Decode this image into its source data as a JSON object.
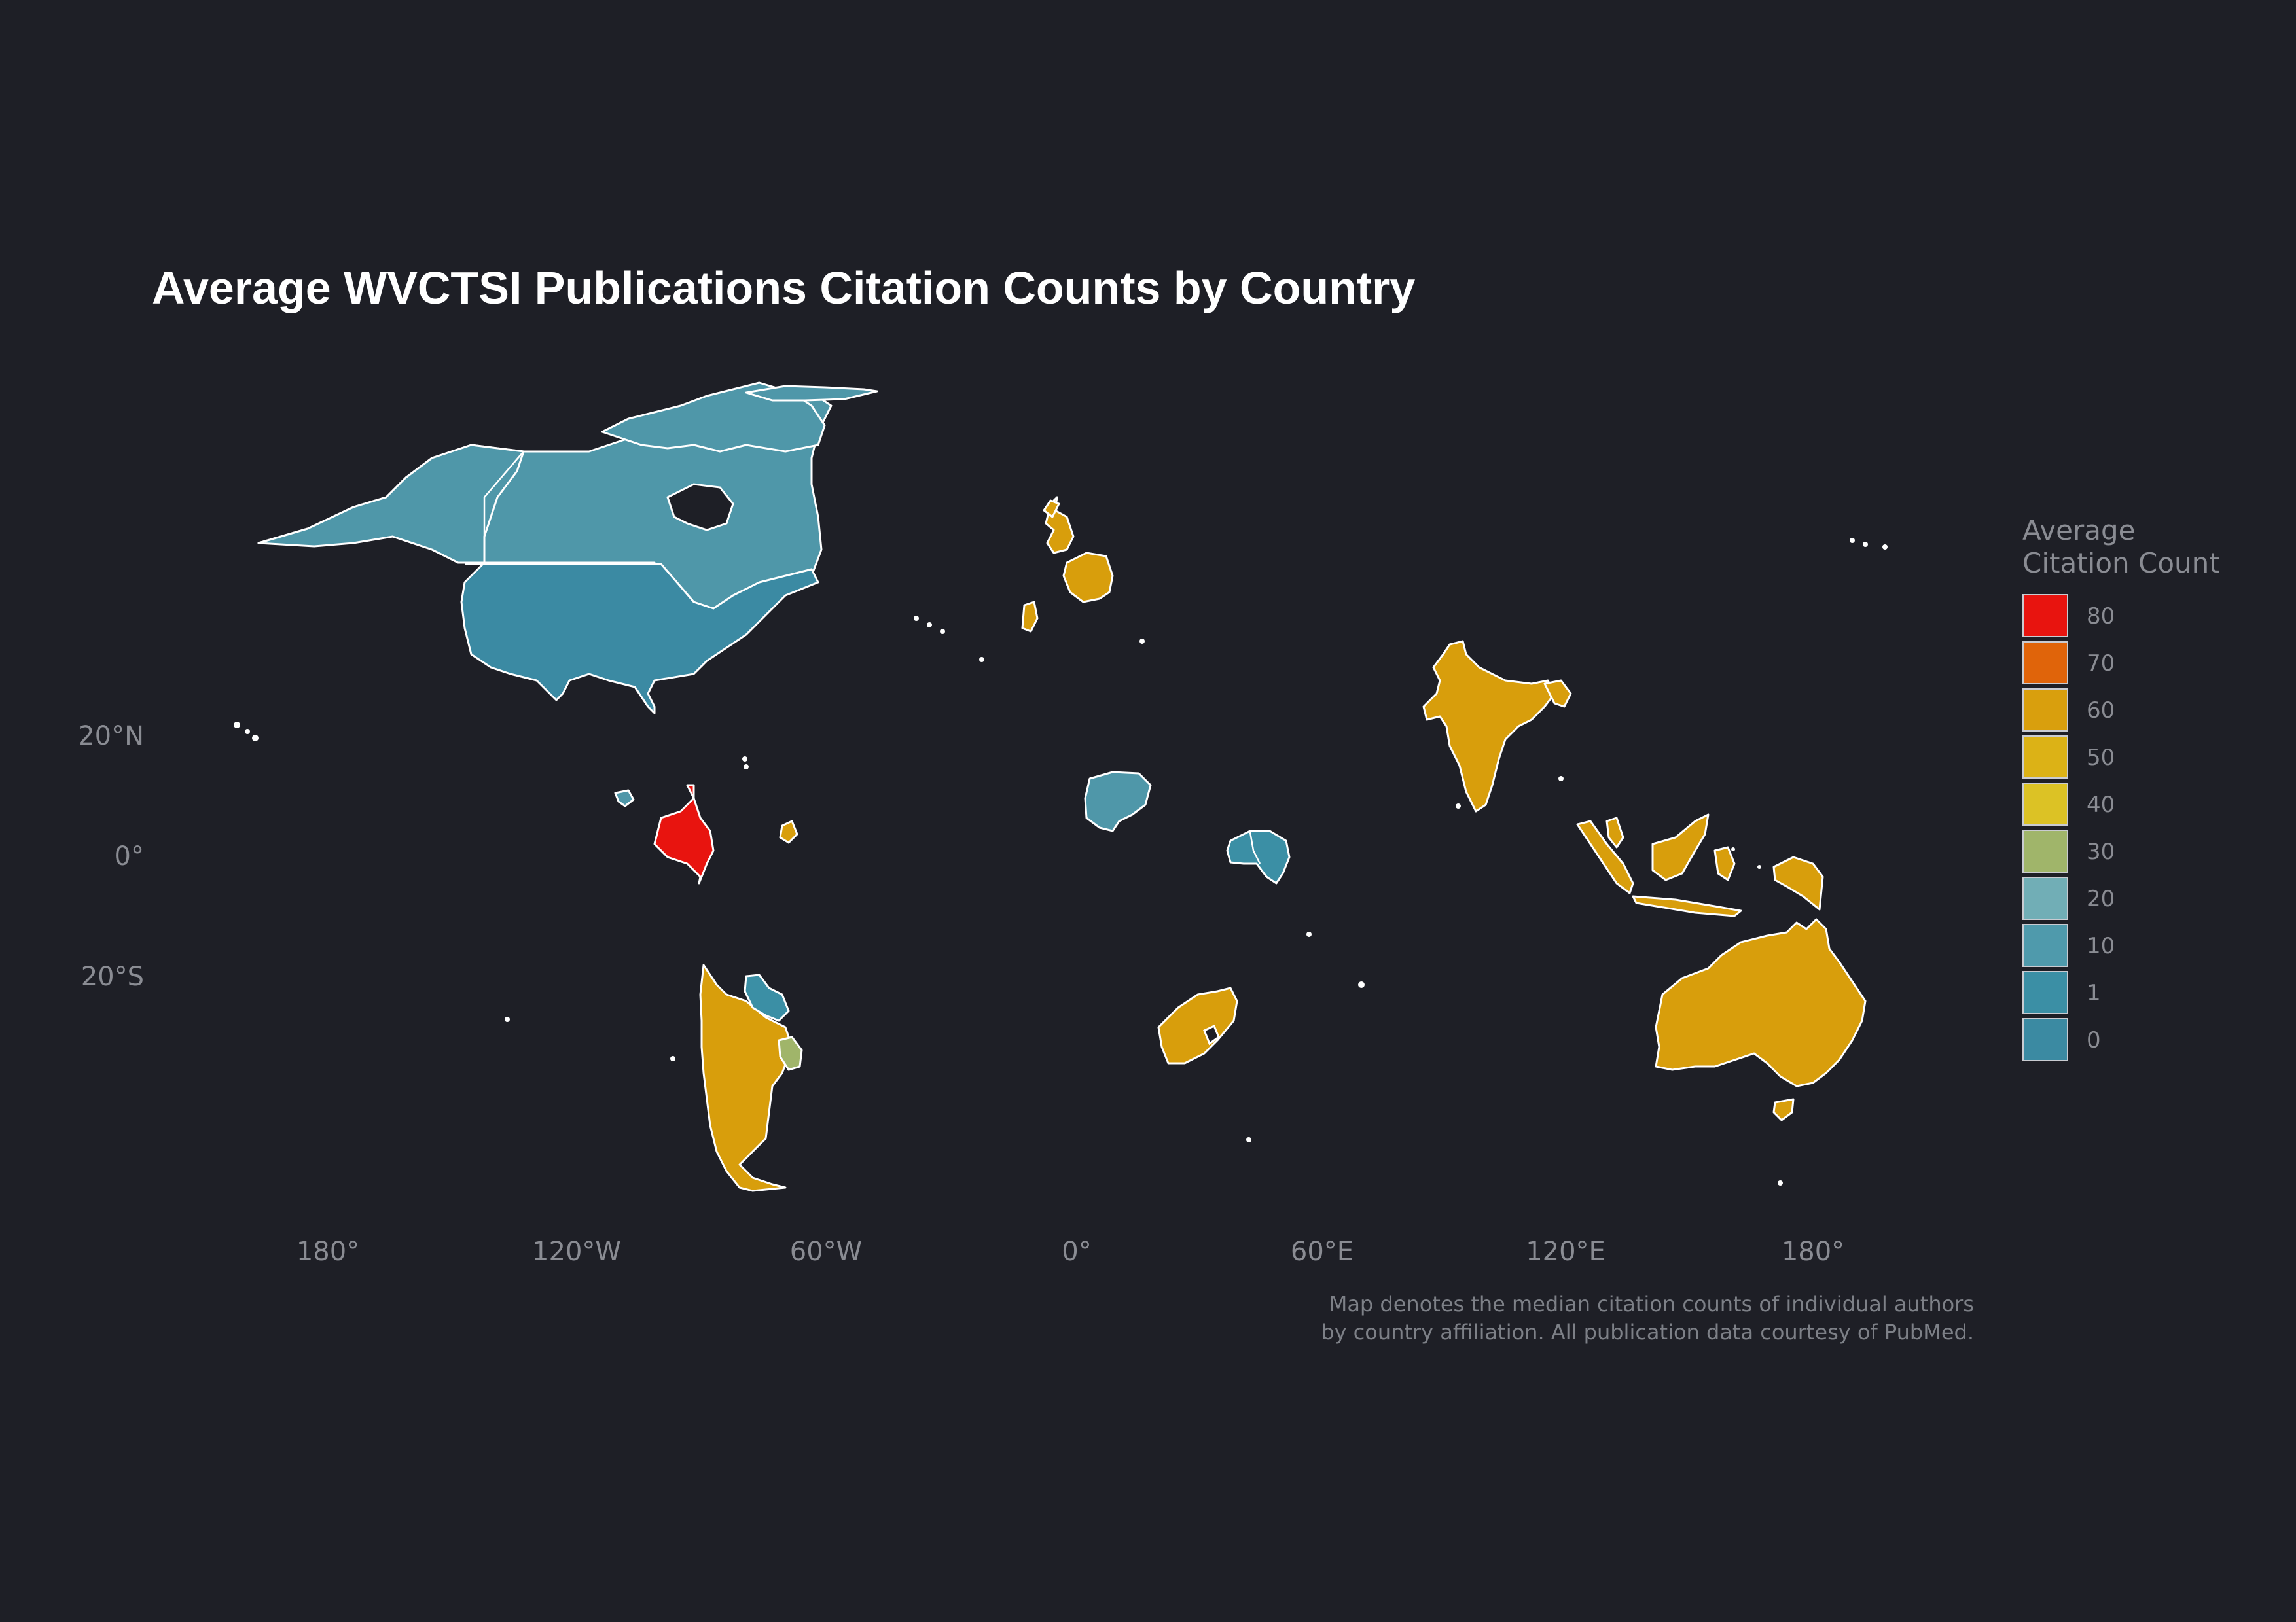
{
  "title": "Average WVCTSI Publications Citation Counts by Country",
  "axes": {
    "latitude_labels": [
      "20°N",
      "0°",
      "20°S"
    ],
    "longitude_labels": [
      "180°",
      "120°W",
      "60°W",
      "0°",
      "60°E",
      "120°E",
      "180°"
    ]
  },
  "legend": {
    "title_line1": "Average",
    "title_line2": "Citation Count",
    "items": [
      {
        "label": "80",
        "color": "#e8140f"
      },
      {
        "label": "70",
        "color": "#e0640a"
      },
      {
        "label": "60",
        "color": "#d99f0d"
      },
      {
        "label": "50",
        "color": "#dcb216"
      },
      {
        "label": "40",
        "color": "#dcc225"
      },
      {
        "label": "30",
        "color": "#a0b56a"
      },
      {
        "label": "20",
        "color": "#71aeb6"
      },
      {
        "label": "10",
        "color": "#4f9aac"
      },
      {
        "label": "1",
        "color": "#3b8fa5"
      },
      {
        "label": "0",
        "color": "#3b8aa2"
      }
    ]
  },
  "caption": {
    "line1": "Map denotes the median citation counts of individual authors",
    "line2": "by country affiliation. All publication data courtesy of PubMed."
  },
  "colors": {
    "background": "#1e1f26",
    "canada": "#4f97a9",
    "usa": "#3b8aa3",
    "colombia": "#e8140f",
    "gold": "#d89e0c",
    "uruguay": "#a0b56a",
    "nigeria": "#4f97a9",
    "east_africa": "#3b8fa5"
  }
}
